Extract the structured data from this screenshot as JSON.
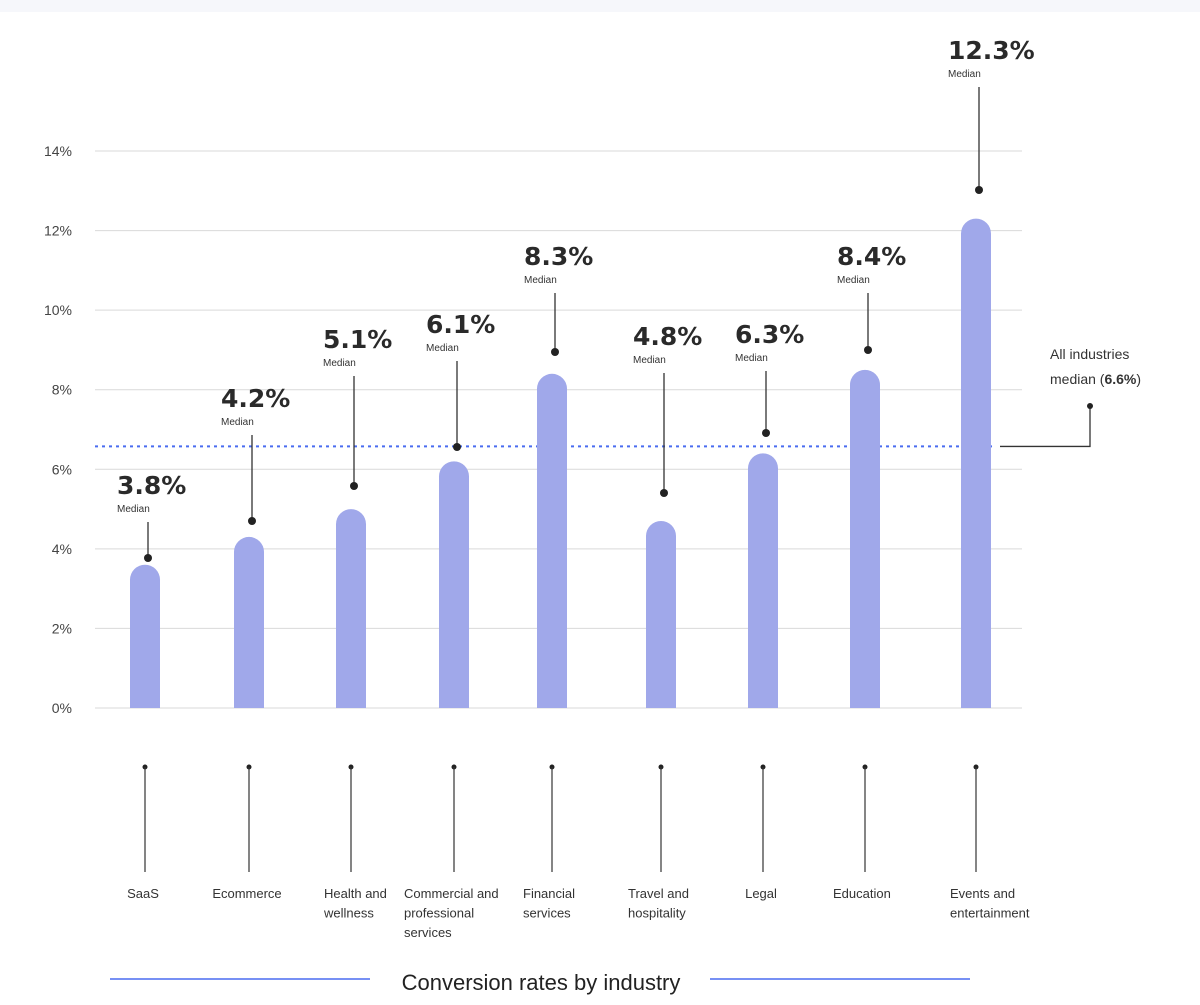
{
  "chart_data": {
    "type": "bar",
    "title": "Conversion rates by industry",
    "xlabel": "",
    "ylabel": "",
    "ylim": [
      0,
      14
    ],
    "yticks": [
      "0%",
      "2%",
      "4%",
      "6%",
      "8%",
      "10%",
      "12%",
      "14%"
    ],
    "grid": true,
    "categories": [
      [
        "SaaS"
      ],
      [
        "Ecommerce"
      ],
      [
        "Health and",
        "wellness"
      ],
      [
        "Commercial and",
        "professional",
        "services"
      ],
      [
        "Financial",
        "services"
      ],
      [
        "Travel and",
        "hospitality"
      ],
      [
        "Legal"
      ],
      [
        "Education"
      ],
      [
        "Events and",
        "entertainment"
      ]
    ],
    "values": [
      3.8,
      4.2,
      5.1,
      6.1,
      8.3,
      4.8,
      6.3,
      8.4,
      12.3
    ],
    "value_labels": [
      "3.8%",
      "4.2%",
      "5.1%",
      "6.1%",
      "8.3%",
      "4.8%",
      "6.3%",
      "8.4%",
      "12.3%"
    ],
    "sublabel": "Median",
    "reference_line": {
      "value": 6.6,
      "label_line1": "All industries",
      "label_prefix": "median (",
      "label_value": "6.6%",
      "label_suffix": ")"
    },
    "colors": {
      "bar": "#a0a8ea",
      "reference": "#4a6cf0",
      "title_rule": "#4a6cf0"
    }
  }
}
